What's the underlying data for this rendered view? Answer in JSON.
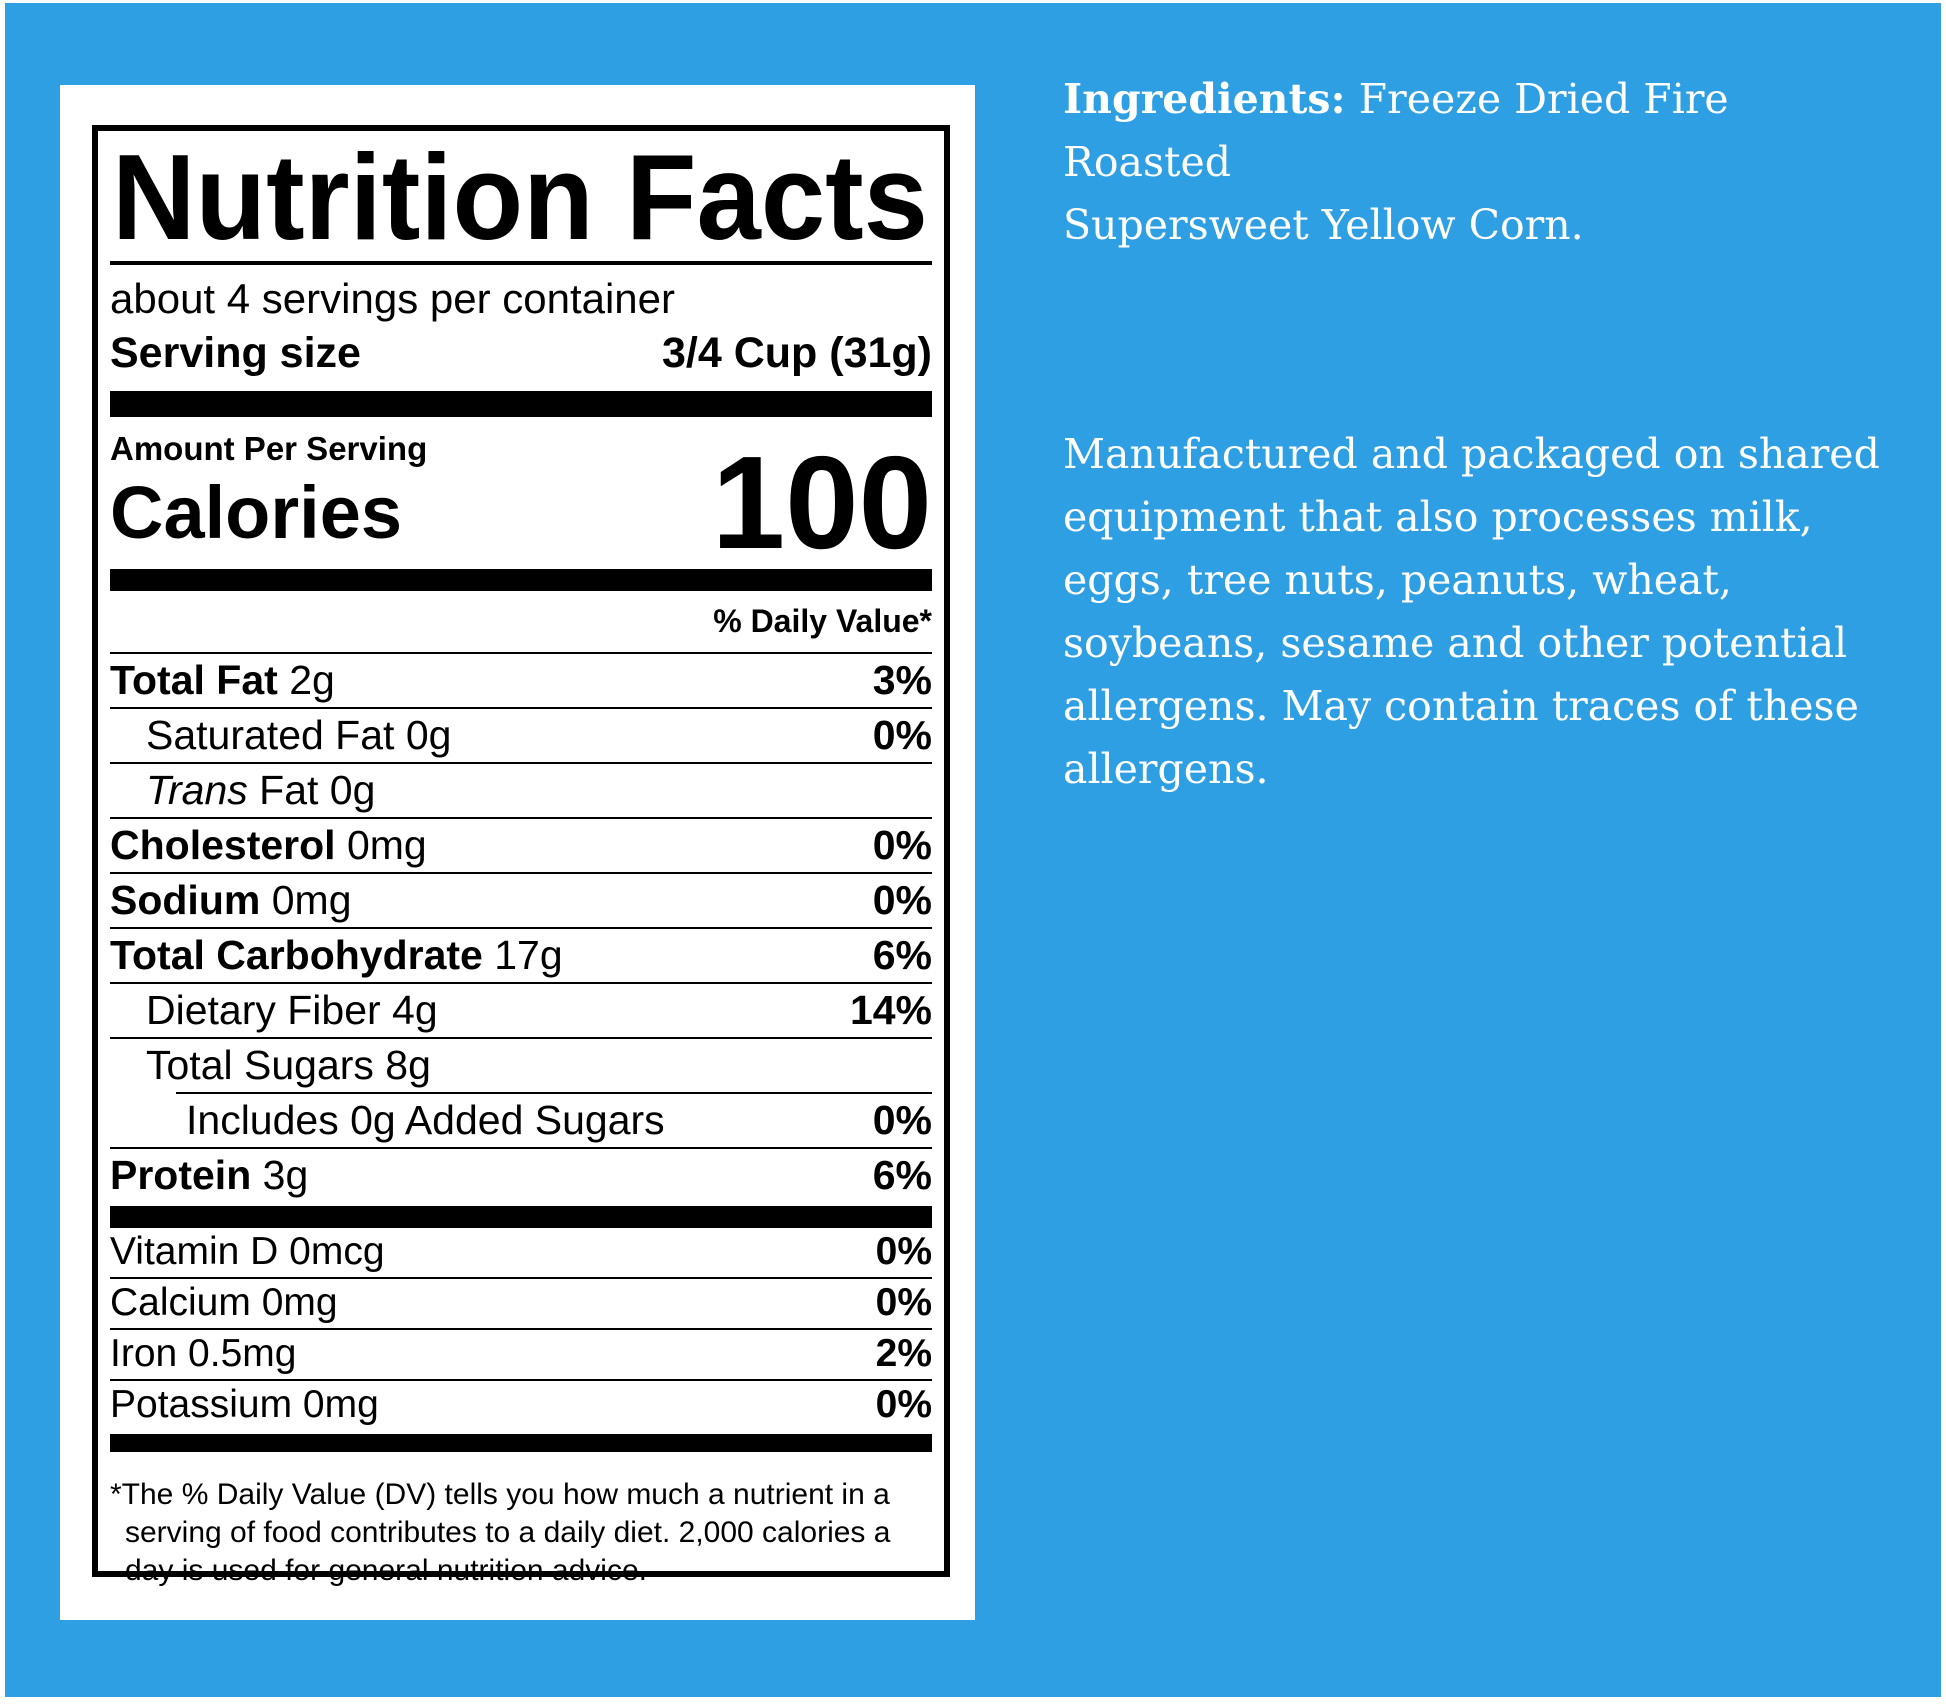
{
  "page": {
    "background_color": "#ffffff",
    "blue_color": "#2E9FE3"
  },
  "label": {
    "title": "Nutrition Facts",
    "servings_per_container": "about 4 servings per container",
    "serving_size_label": "Serving size",
    "serving_size_value": "3/4 Cup (31g)",
    "amount_per_serving": "Amount Per Serving",
    "calories_label": "Calories",
    "calories_value": "100",
    "daily_value_header": "% Daily Value*",
    "nutrients": [
      {
        "bold": "Total Fat",
        "text": "2g",
        "dv": "3%",
        "indent": 0
      },
      {
        "bold": "",
        "text": "Saturated Fat 0g",
        "dv": "0%",
        "indent": 1
      },
      {
        "bold": "",
        "italic": "Trans",
        "text": " Fat 0g",
        "dv": "",
        "indent": 1
      },
      {
        "bold": "Cholesterol",
        "text": "0mg",
        "dv": "0%",
        "indent": 0
      },
      {
        "bold": "Sodium",
        "text": "0mg",
        "dv": "0%",
        "indent": 0
      },
      {
        "bold": "Total Carbohydrate",
        "text": "17g",
        "dv": "6%",
        "indent": 0
      },
      {
        "bold": "",
        "text": "Dietary Fiber 4g",
        "dv": "14%",
        "indent": 1
      },
      {
        "bold": "",
        "text": "Total Sugars 8g",
        "dv": "",
        "indent": 1,
        "no_bottom_border": true
      },
      {
        "bold": "",
        "text": "Includes 0g Added Sugars",
        "dv": "0%",
        "indent": 2,
        "inset_top_rule": true
      },
      {
        "bold": "Protein",
        "text": "3g",
        "dv": "6%",
        "indent": 0,
        "last": true
      }
    ],
    "vitamins": [
      {
        "text": "Vitamin D 0mcg",
        "dv": "0%"
      },
      {
        "text": "Calcium 0mg",
        "dv": "0%"
      },
      {
        "text": "Iron 0.5mg",
        "dv": "2%"
      },
      {
        "text": "Potassium 0mg",
        "dv": "0%"
      }
    ],
    "footnote_lines": [
      "*The % Daily Value (DV) tells you how much a nutrient in a",
      "serving of food contributes to a daily diet. 2,000 calories a",
      "day is used for general nutrition advice."
    ]
  },
  "right_panel": {
    "text_color": "#ffffff",
    "ingredients_label": "Ingredients:",
    "ingredients_rest": " Freeze Dried Fire Roasted",
    "ingredients_line2": "Supersweet Yellow Corn.",
    "allergen_lines": [
      "Manufactured and packaged on shared",
      "equipment that also processes milk,",
      "eggs, tree nuts, peanuts, wheat,",
      "soybeans, sesame and other potential",
      "allergens. May contain traces of these",
      "allergens."
    ]
  }
}
